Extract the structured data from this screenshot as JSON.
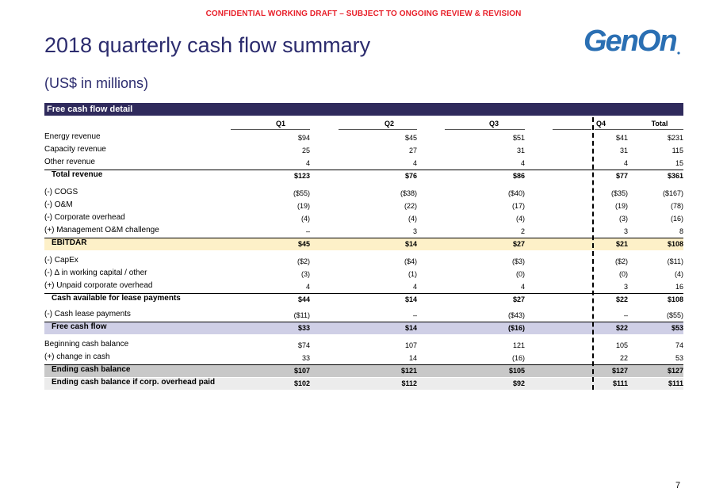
{
  "header": {
    "confidential": "CONFIDENTIAL WORKING DRAFT – SUBJECT TO ONGOING REVIEW & REVISION",
    "title": "2018 quarterly cash flow summary",
    "subtitle": "(US$ in millions)",
    "logo_text": "GenOn"
  },
  "section": {
    "title": "Free cash flow detail"
  },
  "columns": [
    "Q1",
    "Q2",
    "Q3",
    "Q4",
    "Total"
  ],
  "rows": [
    {
      "label": "Energy revenue",
      "values": [
        "$94",
        "$45",
        "$51",
        "$41",
        "$231"
      ]
    },
    {
      "label": "Capacity revenue",
      "values": [
        "25",
        "27",
        "31",
        "31",
        "115"
      ]
    },
    {
      "label": "Other revenue",
      "values": [
        "4",
        "4",
        "4",
        "4",
        "15"
      ]
    },
    {
      "label": "Total revenue",
      "values": [
        "$123",
        "$76",
        "$86",
        "$77",
        "$361"
      ]
    },
    {
      "label": "(-) COGS",
      "values": [
        "($55)",
        "($38)",
        "($40)",
        "($35)",
        "($167)"
      ]
    },
    {
      "label": "(-) O&M",
      "values": [
        "(19)",
        "(22)",
        "(17)",
        "(19)",
        "(78)"
      ]
    },
    {
      "label": "(-) Corporate overhead",
      "values": [
        "(4)",
        "(4)",
        "(4)",
        "(3)",
        "(16)"
      ]
    },
    {
      "label": "(+) Management O&M challenge",
      "values": [
        "–",
        "3",
        "2",
        "3",
        "8"
      ]
    },
    {
      "label": "EBITDAR",
      "values": [
        "$45",
        "$14",
        "$27",
        "$21",
        "$108"
      ]
    },
    {
      "label": "(-) CapEx",
      "values": [
        "($2)",
        "($4)",
        "($3)",
        "($2)",
        "($11)"
      ]
    },
    {
      "label": "(-) ∆ in working capital / other",
      "values": [
        "(3)",
        "(1)",
        "(0)",
        "(0)",
        "(4)"
      ]
    },
    {
      "label": "(+) Unpaid corporate overhead",
      "values": [
        "4",
        "4",
        "4",
        "3",
        "16"
      ]
    },
    {
      "label": "Cash available for lease payments",
      "values": [
        "$44",
        "$14",
        "$27",
        "$22",
        "$108"
      ]
    },
    {
      "label": "(-) Cash lease payments",
      "values": [
        "($11)",
        "–",
        "($43)",
        "–",
        "($55)"
      ]
    },
    {
      "label": "Free cash flow",
      "values": [
        "$33",
        "$14",
        "($16)",
        "$22",
        "$53"
      ]
    },
    {
      "label": "Beginning cash balance",
      "values": [
        "$74",
        "107",
        "121",
        "105",
        "74"
      ]
    },
    {
      "label": "(+) change in cash",
      "values": [
        "33",
        "14",
        "(16)",
        "22",
        "53"
      ]
    },
    {
      "label": "Ending cash balance",
      "values": [
        "$107",
        "$121",
        "$105",
        "$127",
        "$127"
      ]
    },
    {
      "label": "Ending cash balance if corp. overhead paid",
      "values": [
        "$102",
        "$112",
        "$92",
        "$111",
        "$111"
      ]
    }
  ],
  "colors": {
    "accent": "#2f2a5c",
    "ebitdar_band": "#fdf0c8",
    "fcf_band": "#cfcfe6",
    "ending_band": "#c8c8c8",
    "ending_paid_band": "#ececec",
    "confidential": "#e8202a"
  },
  "footer": {
    "page_number": "7"
  }
}
